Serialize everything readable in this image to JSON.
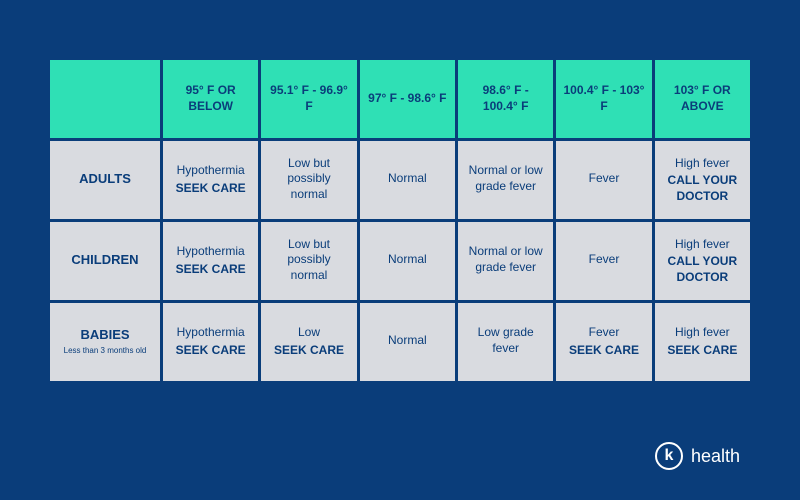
{
  "colors": {
    "page_bg": "#0a3d7a",
    "header_bg": "#2fe0b5",
    "cell_bg": "#d9dbe0",
    "text": "#0a3d7a",
    "logo": "#ffffff"
  },
  "table": {
    "type": "table",
    "col_headers": [
      "95° F OR BELOW",
      "95.1° F - 96.9° F",
      "97° F - 98.6° F",
      "98.6° F - 100.4° F",
      "100.4° F - 103° F",
      "103° F OR ABOVE"
    ],
    "rows": [
      {
        "label": "ADULTS",
        "sublabel": "",
        "cells": [
          {
            "l1": "Hypothermia",
            "l2": "SEEK CARE"
          },
          {
            "l1": "Low but possibly normal",
            "l2": ""
          },
          {
            "l1": "Normal",
            "l2": ""
          },
          {
            "l1": "Normal or low grade fever",
            "l2": ""
          },
          {
            "l1": "Fever",
            "l2": ""
          },
          {
            "l1": "High fever",
            "l2": "CALL YOUR DOCTOR"
          }
        ]
      },
      {
        "label": "CHILDREN",
        "sublabel": "",
        "cells": [
          {
            "l1": "Hypothermia",
            "l2": "SEEK CARE"
          },
          {
            "l1": "Low but possibly normal",
            "l2": ""
          },
          {
            "l1": "Normal",
            "l2": ""
          },
          {
            "l1": "Normal or low grade fever",
            "l2": ""
          },
          {
            "l1": "Fever",
            "l2": ""
          },
          {
            "l1": "High fever",
            "l2": "CALL YOUR DOCTOR"
          }
        ]
      },
      {
        "label": "BABIES",
        "sublabel": "Less than 3 months old",
        "cells": [
          {
            "l1": "Hypothermia",
            "l2": "SEEK CARE"
          },
          {
            "l1": "Low",
            "l2": "SEEK CARE"
          },
          {
            "l1": "Normal",
            "l2": ""
          },
          {
            "l1": "Low grade fever",
            "l2": ""
          },
          {
            "l1": "Fever",
            "l2": "SEEK CARE"
          },
          {
            "l1": "High fever",
            "l2": "SEEK CARE"
          }
        ]
      }
    ]
  },
  "logo": {
    "mark": "k",
    "text": "health"
  }
}
